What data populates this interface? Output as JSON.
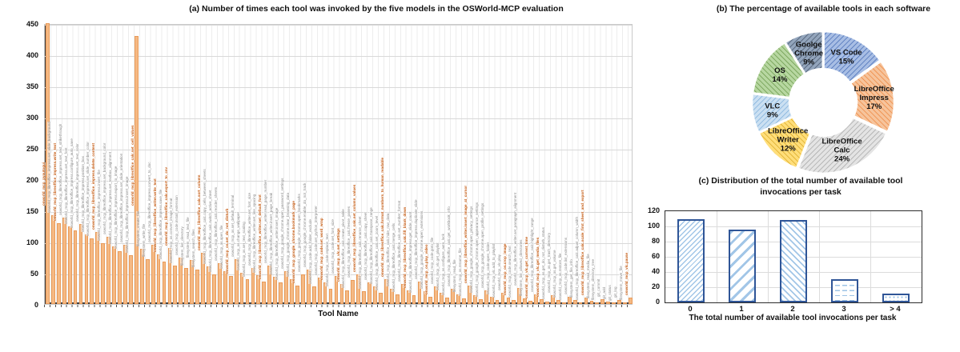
{
  "chart_data": [
    {
      "type": "bar",
      "title": "(a) Number of times each tool was invoked by the five models in the OSWorld-MCP evaluation",
      "xlabel": "Tool Name",
      "ylabel": "",
      "ylim": [
        0,
        450
      ],
      "yticks": [
        0,
        50,
        100,
        150,
        200,
        250,
        300,
        350,
        400,
        450
      ],
      "grid": "on",
      "bar_color": "#F5B983",
      "highlight_label_color": "#C55A11",
      "categories": [
        "osworld_mcp_pyautogui",
        "osworld_mcp_libreoffice_impress.set_slide_background",
        "osworld_mcp_libreoffice_impress.write_text",
        "osworld_mcp_libreoffice_impress.set_text_strikethrough",
        "osworld_mcp_libreoffice_impress.set_text_font",
        "osworld_mcp_libreoffice_impress.configure_auto_save",
        "osworld_mcp_libreoffice_impress.set_text_color",
        "osworld_mcp_libreoffice_impress.position_box",
        "osworld_mcp_libreoffice_impress.set_slide_number_color",
        "osworld_mcp_libreoffice_impress.delete_content",
        "osworld_mcp_libreoffice_impress.insert_file",
        "osworld_mcp_libreoffice_impress.set_background_color",
        "osworld_mcp_libreoffice_impress.set_textbox_alignment",
        "osworld_mcp_libreoffice_impress.export_to_image",
        "osworld_mcp_libreoffice_impress.set_slide_orientation",
        "osworld_mcp_libreoffice_impress.insert_image",
        "osworld_mcp_libreoffice_calc.set_cell_values",
        "filesystem_create_file",
        "filesystem_write_file",
        "osworld_mcp_libreoffice_impress.convert_to_doc",
        "osworld_mcp_libreoffice_writer.write_text",
        "osworld_mcp_libreoffice_impress.save_file",
        "osworld_mcp_libreoffice_calc.export_to_csv",
        "osworld_mcp_os.convert_image_format",
        "osworld_mcp_code.install_extension",
        "filesystem_list_directory",
        "filesystem_read_text_file",
        "filesystem_search_files",
        "osworld_mcp_libreoffice_calc.sort_column",
        "osworld_mcp_libreoffice_calc.copy_cells_between_sheets",
        "osworld_mcp_libreoffice_calc.switch_active_sheet",
        "osworld_mcp_libreoffice_calc.reorder_sheets",
        "osworld_mcp_os.open_file",
        "osworld_mcp_os.set_do_not_disturb",
        "osworld_mcp_os.set_default_terminal",
        "osworld_mcp_os.change_wallpaper",
        "osworld_mcp_os.set_text_scaling",
        "osworld_mcp_libreoffice_writer.set_font_size",
        "osworld_mcp_libreoffice_writer.set_line_spacing",
        "osworld_mcp_libreoffice_writer.set_default_font",
        "osworld_mcp_libreoffice_writer.read_page_number",
        "osworld_mcp_libreoffice_writer.insert_page_break",
        "osworld_mcp_libreoffice_writer.insert_image",
        "osworld_mcp_google_chrome.open_password_settings",
        "osworld_mcp_google_chrome.clear_browsing_data",
        "osworld_mcp_google_chrome.bookmark_page",
        "osworld_mcp_google_chrome.open_bookmarks",
        "osworld_mcp_google_chrome.enable_do_not_track",
        "osworld_mcp_code.add_folder_exclude",
        "osworld_mcp_code.set_python_interpreter",
        "osworld_mcp_code.set_word_wrap",
        "osworld_mcp_code.replace_text",
        "osworld_mcp_code.set_font_size",
        "osworld_mcp_vlc.set_settings",
        "osworld_mcp_libreoffice_calc.create_pivot_table",
        "osworld_mcp_libreoffice_calc.freeze_panes",
        "osworld_mcp_libreoffice_calc.set_column_values",
        "osworld_mcp_libreoffice_calc.rename_sheet",
        "osworld_mcp_libreoffice_calc.copy_sheet",
        "osworld_mcp_libreoffice_calc.transpose_range",
        "osworld_mcp_libreoffice_calc.set_zoom_level",
        "osworld_mcp_libreoffice_calc.format_numbers_to_human_readable",
        "osworld_mcp_libreoffice_calc.hide_row_data",
        "osworld_mcp_libreoffice_calc.merge_cells",
        "osworld_mcp_libreoffice_calc.set_number_format",
        "osworld_mcp_libreoffice_calc.fill_blank_down",
        "osworld_mcp_libreoffice_impress.get_slide_count",
        "osworld_mcp_libreoffice_impress.duplicate_slide",
        "osworld_mcp_google_chrome.open_extensions",
        "osworld_mcp_os.play_video",
        "osworld_mcp_code.goto_file",
        "osworld_mcp_vlc.get_playlist",
        "osworld_mcp_os.configure_auto_lock",
        "osworld_mcp_libreoffice_calc.get_workbook_info",
        "filesystem_read_file",
        "osworld_mcp_os.rename_file",
        "osworld_mcp_libreoffice_writer.insert_image_at_cursor",
        "osworld_mcp_google_chrome.open_privacy_settings",
        "osworld_mcp_google_chrome.open_appearance_settings",
        "osworld_mcp_google_chrome.open_profile_settings",
        "osworld_mcp_code.open_folder",
        "osworld_mcp_vlc.add_to_playlist",
        "osworld_mcp_vlc.play",
        "osworld_mcp_os.crop_image",
        "osworld_mcp_code.search_text",
        "osworld_mcp_libreoffice_writer.set_paragraph_alignment",
        "filesystem_list_allowed_directories",
        "osworld_mcp_vlc.get_current_time",
        "osworld_mcp_libreoffice_calc.highlight_range",
        "osworld_mcp_vlc.get_media_files",
        "osworld_mcp_os.get_do_not_disturb_status",
        "osworld_mcp_os.get_trash_directory",
        "osworld_mcp_os.get_volume",
        "osworld_mcp_os.restore_file",
        "osworld_mcp_code.list_extensions",
        "filesystem_get_file_info",
        "osworld_mcp_libreoffice_calc.adjust_column_width",
        "osworld_mcp_libreoffice_calc.scale_first_sheet_and_export",
        "filesystem_read_media_file",
        "filesystem_directory_tree",
        "git_commit",
        "git_add",
        "git_status",
        "git_log",
        "filesystem_move_file",
        "osworld_mcp_vlc.pause"
      ],
      "values": [
        450,
        142,
        130,
        138,
        125,
        118,
        128,
        112,
        105,
        115,
        98,
        108,
        92,
        85,
        95,
        78,
        430,
        88,
        72,
        95,
        80,
        68,
        90,
        62,
        75,
        58,
        70,
        55,
        82,
        60,
        48,
        65,
        52,
        45,
        72,
        50,
        40,
        58,
        46,
        36,
        62,
        44,
        34,
        52,
        40,
        30,
        48,
        55,
        28,
        42,
        35,
        25,
        45,
        32,
        22,
        38,
        48,
        20,
        35,
        28,
        18,
        40,
        25,
        16,
        32,
        22,
        14,
        36,
        20,
        12,
        28,
        18,
        10,
        24,
        15,
        9,
        30,
        14,
        8,
        22,
        12,
        7,
        18,
        10,
        6,
        26,
        9,
        5,
        16,
        8,
        4,
        14,
        7,
        3,
        12,
        6,
        2,
        10,
        5,
        2,
        8,
        4,
        1,
        6,
        3,
        10
      ],
      "highlighted_indices": [
        0,
        2,
        9,
        16,
        20,
        22,
        28,
        33,
        39,
        45,
        50,
        53,
        56,
        61,
        65,
        69,
        76,
        83,
        87,
        89,
        97,
        105
      ]
    },
    {
      "type": "pie",
      "title": "(b) The percentage of available tools in each software",
      "donut": true,
      "start": "top-clockwise",
      "slices": [
        {
          "label": "VS Code",
          "pct": 15,
          "fill": "#A8BEE4",
          "hatch": "#3A62B0",
          "lines": [
            "VS Code",
            "15%"
          ]
        },
        {
          "label": "LibreOffice Impress",
          "pct": 17,
          "fill": "#F6C49C",
          "hatch": "#ED7D31",
          "lines": [
            "LibreOffice",
            "Impress",
            "17%"
          ]
        },
        {
          "label": "LibreOffice Calc",
          "pct": 24,
          "fill": "#E4E4E4",
          "hatch": "#9E9E9E",
          "lines": [
            "LibreOffice",
            "Calc",
            "24%"
          ]
        },
        {
          "label": "LibreOffice Writer",
          "pct": 12,
          "fill": "#FFDE7A",
          "hatch": "#D4A017",
          "lines": [
            "LibreOffice",
            "Writer",
            "12%"
          ]
        },
        {
          "label": "VLC",
          "pct": 9,
          "fill": "#CBE0F2",
          "hatch": "#74A9D8",
          "lines": [
            "VLC",
            "9%"
          ]
        },
        {
          "label": "OS",
          "pct": 14,
          "fill": "#B7D7A1",
          "hatch": "#5E8F3C",
          "lines": [
            "OS",
            "14%"
          ]
        },
        {
          "label": "Goolge Chrome",
          "pct": 9,
          "fill": "#93A5BC",
          "hatch": "#3D4C63",
          "lines": [
            "Goolge",
            "Chrome",
            "9%"
          ]
        }
      ]
    },
    {
      "type": "bar",
      "title": "(c) Distribution of the total number of available tool invocations per task",
      "title_line1": "(c) Distribution of the total number of available tool",
      "title_line2": "invocations per task",
      "xlabel": "The total number of available tool invocations per task",
      "ylim": [
        0,
        120
      ],
      "yticks": [
        0,
        20,
        40,
        60,
        80,
        100,
        120
      ],
      "grid": "on",
      "categories": [
        "0",
        "1",
        "2",
        "3",
        "> 4"
      ],
      "values": [
        110,
        96,
        108,
        31,
        12
      ],
      "bar_border_color": "#2F5597",
      "hatch_color": "#9DC3E6",
      "patterns": [
        "diagonal-left-dense",
        "diagonal-left-wide",
        "diagonal-right-dense",
        "horizontal-dashes",
        "dots"
      ]
    }
  ]
}
